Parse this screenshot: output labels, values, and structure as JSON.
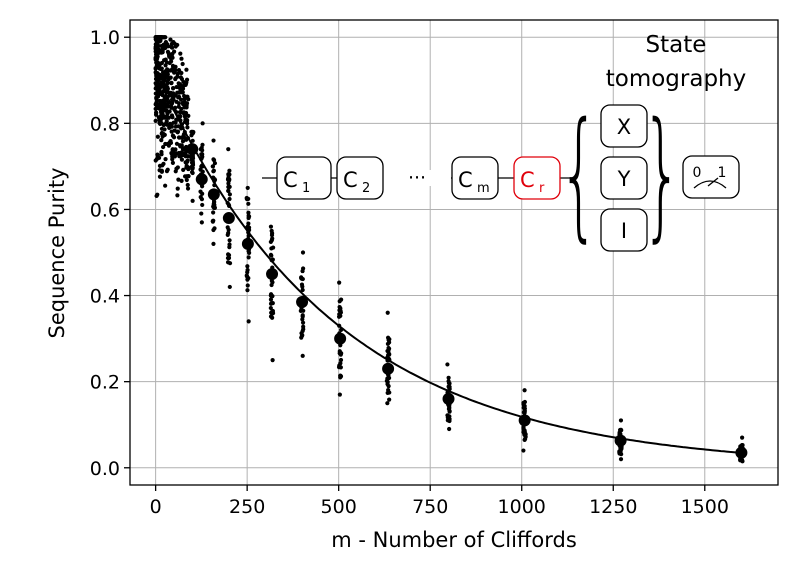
{
  "chart_data": {
    "type": "scatter",
    "xlabel": "m - Number of Cliffords",
    "ylabel": "Sequence Purity",
    "xlim": [
      -70,
      1700
    ],
    "ylim": [
      -0.04,
      1.04
    ],
    "grid": true,
    "x_ticks": [
      "0",
      "250",
      "500",
      "750",
      "1000",
      "1250",
      "1500"
    ],
    "x_tick_values": [
      0,
      250,
      500,
      750,
      1000,
      1250,
      1500
    ],
    "y_ticks": [
      "0.0",
      "0.2",
      "0.4",
      "0.6",
      "0.8",
      "1.0"
    ],
    "y_tick_values": [
      0.0,
      0.2,
      0.4,
      0.6,
      0.8,
      1.0
    ],
    "series": [
      {
        "role": "mean",
        "marker": "large-dot",
        "x": [
          0,
          8,
          16,
          25,
          32,
          40,
          50,
          63,
          80,
          100,
          126,
          159,
          200,
          252,
          318,
          400,
          504,
          635,
          800,
          1008,
          1270,
          1600
        ],
        "y": [
          0.92,
          0.9,
          0.88,
          0.86,
          0.85,
          0.84,
          0.82,
          0.8,
          0.78,
          0.74,
          0.67,
          0.635,
          0.58,
          0.52,
          0.45,
          0.385,
          0.3,
          0.23,
          0.16,
          0.11,
          0.063,
          0.035
        ]
      },
      {
        "role": "individual sequences",
        "marker": "small-dot",
        "x": [
          100,
          126,
          159,
          200,
          252,
          318,
          400,
          504,
          635,
          800,
          1008,
          1270,
          1600
        ],
        "y_min": [
          0.62,
          0.57,
          0.52,
          0.42,
          0.34,
          0.25,
          0.26,
          0.17,
          0.15,
          0.09,
          0.04,
          0.02,
          0.015
        ],
        "y_max": [
          0.78,
          0.8,
          0.76,
          0.74,
          0.65,
          0.56,
          0.5,
          0.43,
          0.36,
          0.24,
          0.18,
          0.11,
          0.07
        ],
        "dense_cluster": {
          "x_range": [
            0,
            90
          ],
          "y_range": [
            0.55,
            1.0
          ]
        }
      }
    ],
    "fit_curve": {
      "type": "exponential-decay",
      "y0": 0.92,
      "rate": 0.00205,
      "offset": 0.0
    }
  },
  "inset_circuit": {
    "gates": [
      "C",
      "C",
      "C",
      "C"
    ],
    "subscripts": [
      "1",
      "2",
      "m",
      "r"
    ],
    "ellipsis": "···",
    "recovery_color": "#e0000b",
    "tomography_title_line1": "State",
    "tomography_title_line2": "tomography",
    "tomography_ops": [
      "X",
      "Y",
      "I"
    ],
    "meter_labels": [
      "0",
      "1"
    ]
  }
}
